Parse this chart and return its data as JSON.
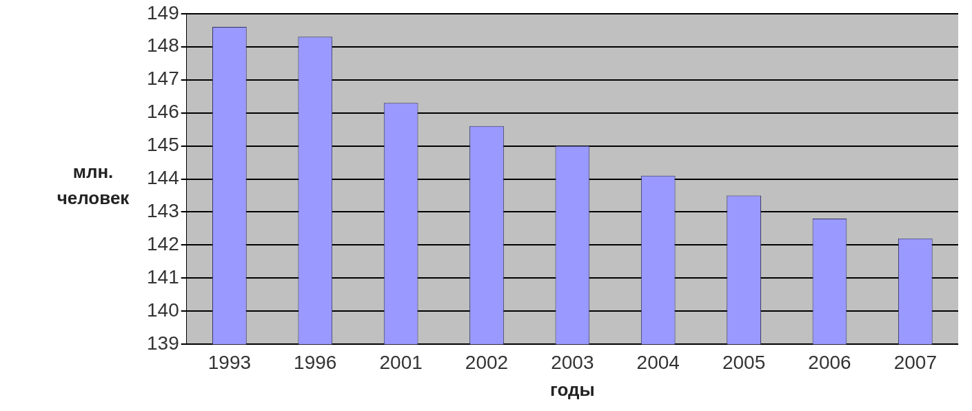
{
  "chart_data": {
    "type": "bar",
    "xlabel": "годы",
    "ylabel": "млн. человек",
    "categories": [
      "1993",
      "1996",
      "2001",
      "2002",
      "2003",
      "2004",
      "2005",
      "2006",
      "2007"
    ],
    "series": [
      {
        "color": "#9999ff",
        "values": [
          148.6,
          148.3,
          146.3,
          145.6,
          145.0,
          144.1,
          143.5,
          142.8,
          142.2
        ]
      }
    ],
    "ylim": [
      139,
      149
    ],
    "yticks": [
      139,
      140,
      141,
      142,
      143,
      144,
      145,
      146,
      147,
      148,
      149
    ],
    "grid": "y",
    "legend": false
  }
}
